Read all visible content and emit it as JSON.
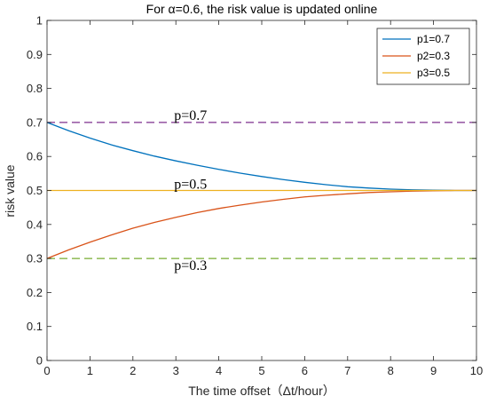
{
  "chart_data": {
    "type": "line",
    "title": "For α=0.6, the risk value is updated online",
    "xlabel": "The time offset（Δt/hour）",
    "ylabel": "risk value",
    "xlim": [
      0,
      10
    ],
    "ylim": [
      0,
      1
    ],
    "xticks": [
      0,
      1,
      2,
      3,
      4,
      5,
      6,
      7,
      8,
      9,
      10
    ],
    "yticks": [
      0,
      0.1,
      0.2,
      0.3,
      0.4,
      0.5,
      0.6,
      0.7,
      0.8,
      0.9,
      1
    ],
    "grid": false,
    "legend_position": "top-right",
    "x": [
      0,
      0.5,
      1,
      1.5,
      2,
      2.5,
      3,
      3.5,
      4,
      4.5,
      5,
      5.5,
      6,
      6.5,
      7,
      7.5,
      8,
      8.5,
      9,
      9.5,
      10
    ],
    "series": [
      {
        "name": "p1=0.7",
        "color": "#0072BD",
        "style": "solid",
        "values": [
          0.7,
          0.676,
          0.654,
          0.634,
          0.617,
          0.601,
          0.587,
          0.574,
          0.562,
          0.551,
          0.541,
          0.532,
          0.524,
          0.517,
          0.511,
          0.507,
          0.504,
          0.502,
          0.501,
          0.5,
          0.5
        ]
      },
      {
        "name": "p2=0.3",
        "color": "#D95319",
        "style": "solid",
        "values": [
          0.3,
          0.325,
          0.348,
          0.369,
          0.389,
          0.406,
          0.421,
          0.435,
          0.447,
          0.457,
          0.466,
          0.474,
          0.481,
          0.486,
          0.49,
          0.494,
          0.496,
          0.498,
          0.499,
          0.5,
          0.5
        ]
      },
      {
        "name": "p3=0.5",
        "color": "#EDB120",
        "style": "solid",
        "values": [
          0.5,
          0.5,
          0.5,
          0.5,
          0.5,
          0.5,
          0.5,
          0.5,
          0.5,
          0.5,
          0.5,
          0.5,
          0.5,
          0.5,
          0.5,
          0.5,
          0.5,
          0.5,
          0.5,
          0.5,
          0.5
        ]
      }
    ],
    "reference_lines": [
      {
        "y": 0.7,
        "color": "#7E2F8E",
        "style": "dashed"
      },
      {
        "y": 0.3,
        "color": "#77AC30",
        "style": "dashed"
      }
    ],
    "annotations": [
      {
        "text": "p=0.7",
        "x": 3.0,
        "y": 0.7
      },
      {
        "text": "p=0.5",
        "x": 3.0,
        "y": 0.5
      },
      {
        "text": "p=0.3",
        "x": 3.0,
        "y": 0.3
      }
    ]
  }
}
